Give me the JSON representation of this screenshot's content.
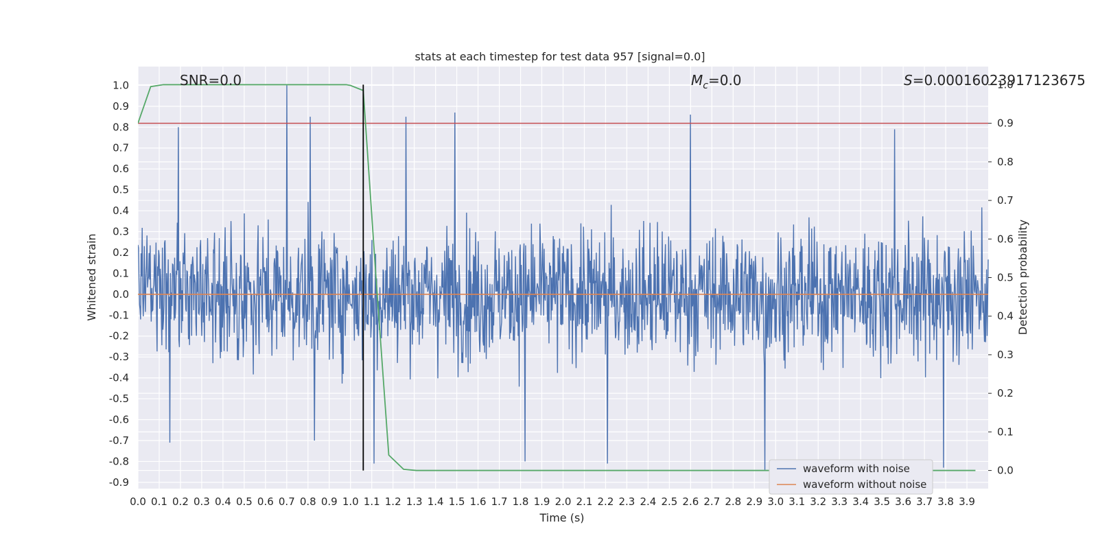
{
  "chart_data": {
    "type": "line",
    "title": "stats at each timestep for test data 957 [signal=0.0]",
    "xlabel": "Time (s)",
    "ylabel": "Whitened strain",
    "y2label": "Detection probability",
    "xlim": [
      0.0,
      4.0
    ],
    "ylim": [
      -0.93,
      1.09
    ],
    "y2lim": [
      -0.047,
      1.047
    ],
    "grid": true,
    "legend_position": "lower-right",
    "x_ticks": [
      "0.0",
      "0.1",
      "0.2",
      "0.3",
      "0.4",
      "0.5",
      "0.6",
      "0.7",
      "0.8",
      "0.9",
      "1.0",
      "1.1",
      "1.2",
      "1.3",
      "1.4",
      "1.5",
      "1.6",
      "1.7",
      "1.8",
      "1.9",
      "2.0",
      "2.1",
      "2.2",
      "2.3",
      "2.4",
      "2.5",
      "2.6",
      "2.7",
      "2.8",
      "2.9",
      "3.0",
      "3.1",
      "3.2",
      "3.3",
      "3.4",
      "3.5",
      "3.6",
      "3.7",
      "3.8",
      "3.9"
    ],
    "y_ticks": [
      "-0.9",
      "-0.8",
      "-0.7",
      "-0.6",
      "-0.5",
      "-0.4",
      "-0.3",
      "-0.2",
      "-0.1",
      "0.0",
      "0.1",
      "0.2",
      "0.3",
      "0.4",
      "0.5",
      "0.6",
      "0.7",
      "0.8",
      "0.9",
      "1.0"
    ],
    "y2_ticks": [
      "0.0",
      "0.1",
      "0.2",
      "0.3",
      "0.4",
      "0.5",
      "0.6",
      "0.7",
      "0.8",
      "0.9",
      "1.0"
    ],
    "annotations": {
      "snr": "SNR=0.0",
      "mc_symbol": "M",
      "mc_sub": "c",
      "mc_value": "=0.0",
      "s_symbol": "S",
      "s_value": "=0.00016023917123675"
    },
    "series": [
      {
        "name": "waveform with noise",
        "color": "#4c72b0",
        "axis": "left",
        "x_range": [
          0.0,
          4.0
        ],
        "samples": 1600,
        "y_min": -0.84,
        "y_max": 1.0,
        "peaks": [
          {
            "x": 0.19,
            "y": 0.8
          },
          {
            "x": 0.7,
            "y": 1.0
          },
          {
            "x": 0.81,
            "y": 0.85
          },
          {
            "x": 1.26,
            "y": 0.85
          },
          {
            "x": 1.49,
            "y": 0.87
          },
          {
            "x": 2.6,
            "y": 0.86
          },
          {
            "x": 3.56,
            "y": 0.79
          },
          {
            "x": 0.15,
            "y": -0.71
          },
          {
            "x": 0.83,
            "y": -0.7
          },
          {
            "x": 2.21,
            "y": -0.81
          },
          {
            "x": 1.82,
            "y": -0.8
          },
          {
            "x": 2.95,
            "y": -0.84
          },
          {
            "x": 3.79,
            "y": -0.83
          },
          {
            "x": 1.11,
            "y": -0.81
          }
        ]
      },
      {
        "name": "waveform without noise",
        "color": "#dd8452",
        "axis": "left",
        "x": [
          0.0,
          4.0
        ],
        "y": [
          0.0,
          0.0
        ]
      },
      {
        "name": "",
        "color": "#55a868",
        "axis": "right",
        "x": [
          0.0,
          0.06,
          0.12,
          0.18,
          0.25,
          0.31,
          0.37,
          0.43,
          0.49,
          0.55,
          0.61,
          0.68,
          0.74,
          0.8,
          0.86,
          0.92,
          0.98,
          1.0,
          1.06,
          1.12,
          1.18,
          1.25,
          1.31,
          1.37,
          1.43,
          1.49,
          1.55,
          1.61,
          1.68,
          1.74,
          1.8,
          1.86,
          1.92,
          1.98,
          2.04,
          2.1,
          2.17,
          2.23,
          2.29,
          2.35,
          2.41,
          2.47,
          2.53,
          2.59,
          2.66,
          2.72,
          2.78,
          2.84,
          2.9,
          2.96,
          3.02,
          3.08,
          3.14,
          3.21,
          3.27,
          3.33,
          3.39,
          3.45,
          3.51,
          3.57,
          3.63,
          3.69,
          3.76,
          3.82,
          3.88,
          3.94
        ],
        "y": [
          0.9,
          0.995,
          1.0,
          1.0,
          1.0,
          1.0,
          1.0,
          1.0,
          1.0,
          1.0,
          1.0,
          1.0,
          1.0,
          1.0,
          1.0,
          1.0,
          1.0,
          0.998,
          0.985,
          0.5,
          0.04,
          0.003,
          0.0,
          0.0,
          0.0,
          0.0,
          0.0,
          0.0,
          0.0,
          0.0,
          0.0,
          0.0,
          0.0,
          0.0,
          0.0,
          0.0,
          0.0,
          0.0,
          0.0,
          0.0,
          0.0,
          0.0,
          0.0,
          0.0,
          0.0,
          0.0,
          0.0,
          0.0,
          0.0,
          0.0,
          0.0,
          0.0,
          0.0,
          0.0,
          0.0,
          0.0,
          0.0,
          0.0,
          0.0,
          0.0,
          0.0,
          0.0,
          0.0,
          0.0,
          0.0,
          0.0
        ]
      },
      {
        "name": "",
        "color": "#c44e52",
        "axis": "right",
        "x": [
          0.0,
          4.0
        ],
        "y": [
          0.9,
          0.9
        ]
      }
    ],
    "marker_line": {
      "x": 1.06,
      "y2": [
        0.0,
        1.0
      ],
      "color": "#000000"
    }
  }
}
